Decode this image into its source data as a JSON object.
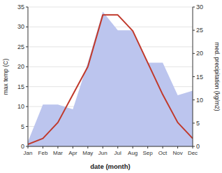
{
  "chart_data": {
    "type": "line",
    "xlabel": "date (month)",
    "ylabel": "max temp (C)",
    "y2label": "med. precipitation (kg/m2)",
    "categories": [
      "Jan",
      "Feb",
      "Mar",
      "Apr",
      "May",
      "Jun",
      "Jul",
      "Aug",
      "Sep",
      "Oct",
      "Nov",
      "Dec"
    ],
    "series": [
      {
        "type": "area",
        "axis": "y2",
        "color": "#bcc5ee",
        "values": [
          1.0,
          9.0,
          9.0,
          8.0,
          18.0,
          29.0,
          25.0,
          25.0,
          18.0,
          18.0,
          11.0,
          12.0
        ]
      },
      {
        "type": "line",
        "color": "#c0392b",
        "values": [
          0.5,
          2.0,
          6.0,
          13.0,
          20.0,
          33.0,
          33.0,
          29.0,
          21.0,
          13.0,
          6.0,
          2.0
        ]
      }
    ],
    "ylim": [
      0,
      35
    ],
    "yticks": [
      0,
      5,
      10,
      15,
      20,
      25,
      30,
      35
    ],
    "y2lim": [
      0,
      30
    ],
    "y2ticks": [
      0,
      5,
      10,
      15,
      20,
      25,
      30
    ],
    "grid": true
  }
}
